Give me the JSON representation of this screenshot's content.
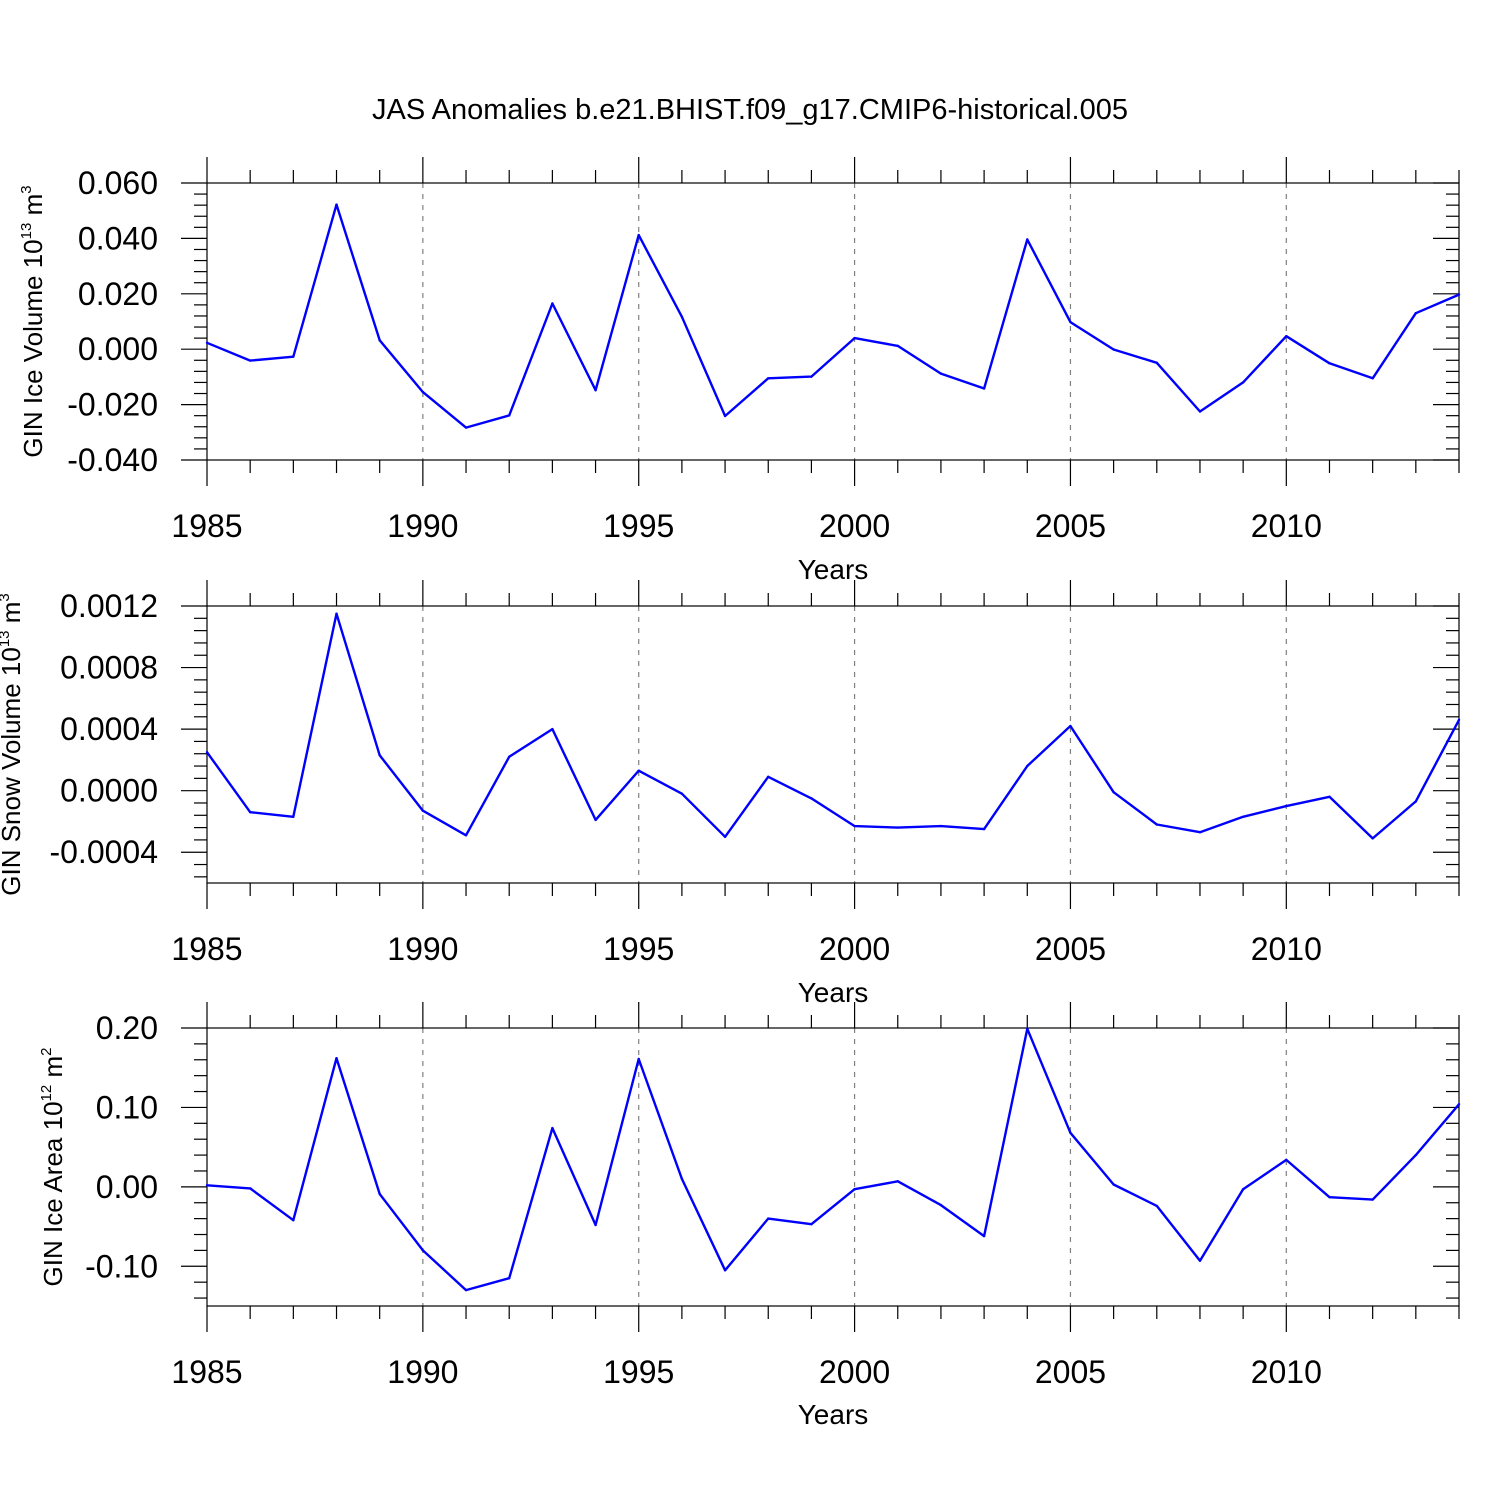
{
  "title": "JAS Anomalies b.e21.BHIST.f09_g17.CMIP6-historical.005",
  "colors": {
    "line": "#0000ff",
    "grid": "#808080",
    "axis": "#000000"
  },
  "chart_data": [
    {
      "type": "line",
      "xlabel": "Years",
      "ylabel_main": "GIN Ice Volume 10",
      "ylabel_exp": "13",
      "ylabel_unit": " m",
      "ylabel_unit_exp": "3",
      "xlim": [
        1985,
        2014
      ],
      "ylim": [
        -0.04,
        0.06
      ],
      "xticks": [
        1985,
        1990,
        1995,
        2000,
        2005,
        2010
      ],
      "xtick_labels": [
        "1985",
        "1990",
        "1995",
        "2000",
        "2005",
        "2010"
      ],
      "yticks": [
        -0.04,
        -0.02,
        0.0,
        0.02,
        0.04,
        0.06
      ],
      "ytick_labels": [
        "-0.040",
        "-0.020",
        "0.000",
        "0.020",
        "0.040",
        "0.060"
      ],
      "x": [
        1985,
        1986,
        1987,
        1988,
        1989,
        1990,
        1991,
        1992,
        1993,
        1994,
        1995,
        1996,
        1997,
        1998,
        1999,
        2000,
        2001,
        2002,
        2003,
        2004,
        2005,
        2006,
        2007,
        2008,
        2009,
        2010,
        2011,
        2012,
        2013,
        2014
      ],
      "values": [
        0.0023,
        -0.0041,
        -0.0027,
        0.0522,
        0.0032,
        -0.0155,
        -0.0283,
        -0.0239,
        0.0165,
        -0.0148,
        0.0412,
        0.0117,
        -0.0241,
        -0.0105,
        -0.0099,
        0.004,
        0.0012,
        -0.0088,
        -0.0142,
        0.0396,
        0.0098,
        -0.0001,
        -0.0049,
        -0.0225,
        -0.012,
        0.0047,
        -0.0051,
        -0.0105,
        0.013,
        0.0197
      ]
    },
    {
      "type": "line",
      "xlabel": "Years",
      "ylabel_main": "GIN Snow Volume 10",
      "ylabel_exp": "13",
      "ylabel_unit": " m",
      "ylabel_unit_exp": "3",
      "xlim": [
        1985,
        2014
      ],
      "ylim": [
        -0.0006,
        0.0012
      ],
      "xticks": [
        1985,
        1990,
        1995,
        2000,
        2005,
        2010
      ],
      "xtick_labels": [
        "1985",
        "1990",
        "1995",
        "2000",
        "2005",
        "2010"
      ],
      "yticks": [
        -0.0004,
        0.0,
        0.0004,
        0.0008,
        0.0012
      ],
      "ytick_labels": [
        "-0.0004",
        "0.0000",
        "0.0004",
        "0.0008",
        "0.0012"
      ],
      "x": [
        1985,
        1986,
        1987,
        1988,
        1989,
        1990,
        1991,
        1992,
        1993,
        1994,
        1995,
        1996,
        1997,
        1998,
        1999,
        2000,
        2001,
        2002,
        2003,
        2004,
        2005,
        2006,
        2007,
        2008,
        2009,
        2010,
        2011,
        2012,
        2013,
        2014
      ],
      "values": [
        0.00025,
        -0.00014,
        -0.00017,
        0.00115,
        0.00023,
        -0.00013,
        -0.00029,
        0.00022,
        0.0004,
        -0.00019,
        0.00013,
        -2e-05,
        -0.0003,
        9e-05,
        -5e-05,
        -0.00023,
        -0.00024,
        -0.00023,
        -0.00025,
        0.00016,
        0.00042,
        -1e-05,
        -0.00022,
        -0.00027,
        -0.00017,
        -0.0001,
        -4e-05,
        -0.00031,
        -7e-05,
        0.00046
      ]
    },
    {
      "type": "line",
      "xlabel": "Years",
      "ylabel_main": "GIN Ice Area 10",
      "ylabel_exp": "12",
      "ylabel_unit": " m",
      "ylabel_unit_exp": "2",
      "xlim": [
        1985,
        2014
      ],
      "ylim": [
        -0.15,
        0.2
      ],
      "xticks": [
        1985,
        1990,
        1995,
        2000,
        2005,
        2010
      ],
      "xtick_labels": [
        "1985",
        "1990",
        "1995",
        "2000",
        "2005",
        "2010"
      ],
      "yticks": [
        -0.1,
        0.0,
        0.1,
        0.2
      ],
      "ytick_labels": [
        "-0.10",
        "0.00",
        "0.10",
        "0.20"
      ],
      "x": [
        1985,
        1986,
        1987,
        1988,
        1989,
        1990,
        1991,
        1992,
        1993,
        1994,
        1995,
        1996,
        1997,
        1998,
        1999,
        2000,
        2001,
        2002,
        2003,
        2004,
        2005,
        2006,
        2007,
        2008,
        2009,
        2010,
        2011,
        2012,
        2013,
        2014
      ],
      "values": [
        0.002,
        -0.002,
        -0.042,
        0.162,
        -0.009,
        -0.08,
        -0.13,
        -0.115,
        0.074,
        -0.048,
        0.161,
        0.01,
        -0.105,
        -0.04,
        -0.047,
        -0.003,
        0.007,
        -0.023,
        -0.062,
        0.199,
        0.068,
        0.003,
        -0.024,
        -0.093,
        -0.003,
        0.034,
        -0.013,
        -0.016,
        0.04,
        0.104
      ]
    }
  ]
}
